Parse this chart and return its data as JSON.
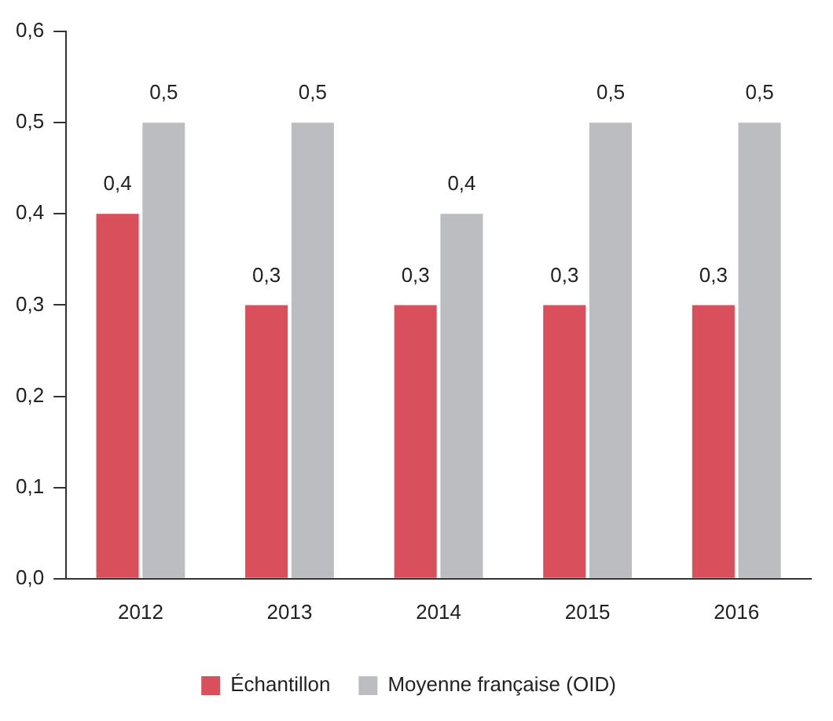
{
  "chart_data": {
    "type": "bar",
    "categories": [
      "2012",
      "2013",
      "2014",
      "2015",
      "2016"
    ],
    "series": [
      {
        "name": "Échantillon",
        "color": "#d9505c",
        "values": [
          0.4,
          0.3,
          0.3,
          0.3,
          0.3
        ],
        "value_labels": [
          "0,4",
          "0,3",
          "0,3",
          "0,3",
          "0,3"
        ]
      },
      {
        "name": "Moyenne française (OID)",
        "color": "#bcbdc0",
        "values": [
          0.5,
          0.5,
          0.4,
          0.5,
          0.5
        ],
        "value_labels": [
          "0,5",
          "0,5",
          "0,4",
          "0,5",
          "0,5"
        ]
      }
    ],
    "ylim": [
      0,
      0.6
    ],
    "yticks": [
      {
        "value": 0,
        "label": "0,0"
      },
      {
        "value": 0.1,
        "label": "0,1"
      },
      {
        "value": 0.2,
        "label": "0,2"
      },
      {
        "value": 0.3,
        "label": "0,3"
      },
      {
        "value": 0.4,
        "label": "0,4"
      },
      {
        "value": 0.5,
        "label": "0,5"
      },
      {
        "value": 0.6,
        "label": "0,6"
      }
    ],
    "grid": false,
    "legend": "bottom"
  }
}
